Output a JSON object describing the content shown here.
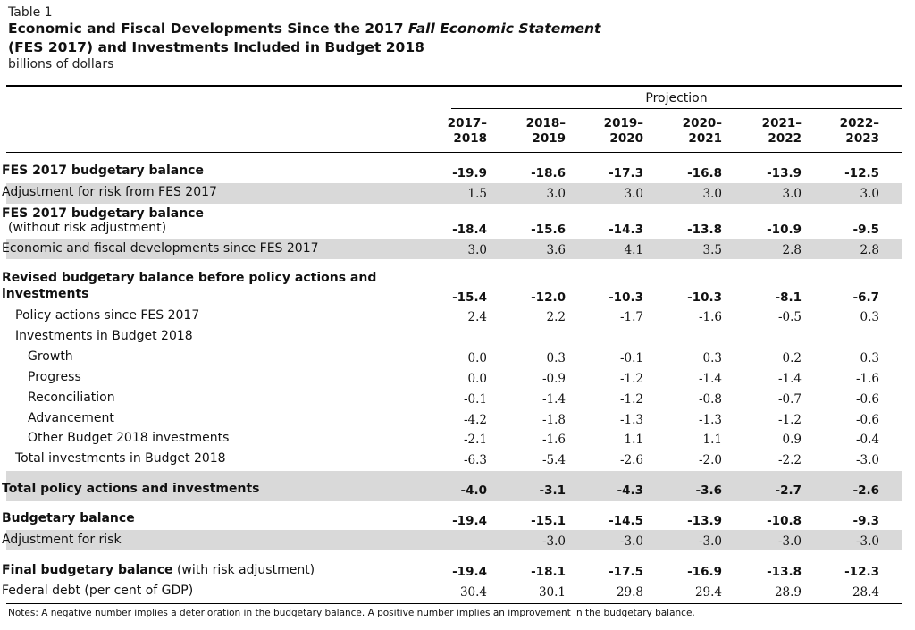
{
  "table_label": "Table 1",
  "title_part1": "Economic and Fiscal Developments Since the 2017 ",
  "title_italic": "Fall Economic Statement",
  "title_line2": "(FES 2017) and Investments Included in Budget 2018",
  "units": "billions of dollars",
  "projection_label": "Projection",
  "years": [
    {
      "top": "2017–",
      "bottom": "2018"
    },
    {
      "top": "2018–",
      "bottom": "2019"
    },
    {
      "top": "2019–",
      "bottom": "2020"
    },
    {
      "top": "2020–",
      "bottom": "2021"
    },
    {
      "top": "2021–",
      "bottom": "2022"
    },
    {
      "top": "2022–",
      "bottom": "2023"
    }
  ],
  "rows": [
    {
      "label": "FES 2017 budgetary balance",
      "values": [
        "-19.9",
        "-18.6",
        "-17.3",
        "-16.8",
        "-13.9",
        "-12.5"
      ]
    },
    {
      "label": "Adjustment for risk from FES 2017",
      "values": [
        "1.5",
        "3.0",
        "3.0",
        "3.0",
        "3.0",
        "3.0"
      ]
    },
    {
      "label": "FES 2017 budgetary balance",
      "label2": "(without risk adjustment)",
      "values": [
        "-18.4",
        "-15.6",
        "-14.3",
        "-13.8",
        "-10.9",
        "-9.5"
      ]
    },
    {
      "label": "Economic and fiscal developments since FES 2017",
      "values": [
        "3.0",
        "3.6",
        "4.1",
        "3.5",
        "2.8",
        "2.8"
      ]
    },
    {
      "label": "Revised budgetary balance before policy actions and",
      "label2": "investments",
      "values": [
        "-15.4",
        "-12.0",
        "-10.3",
        "-10.3",
        "-8.1",
        "-6.7"
      ]
    },
    {
      "label": "Policy actions since FES 2017",
      "values": [
        "2.4",
        "2.2",
        "-1.7",
        "-1.6",
        "-0.5",
        "0.3"
      ]
    },
    {
      "label": "Investments in Budget 2018"
    },
    {
      "label": "Growth",
      "values": [
        "0.0",
        "0.3",
        "-0.1",
        "0.3",
        "0.2",
        "0.3"
      ]
    },
    {
      "label": "Progress",
      "values": [
        "0.0",
        "-0.9",
        "-1.2",
        "-1.4",
        "-1.4",
        "-1.6"
      ]
    },
    {
      "label": "Reconciliation",
      "values": [
        "-0.1",
        "-1.4",
        "-1.2",
        "-0.8",
        "-0.7",
        "-0.6"
      ]
    },
    {
      "label": "Advancement",
      "values": [
        "-4.2",
        "-1.8",
        "-1.3",
        "-1.3",
        "-1.2",
        "-0.6"
      ]
    },
    {
      "label": "Other Budget 2018 investments",
      "values": [
        "-2.1",
        "-1.6",
        "1.1",
        "1.1",
        "0.9",
        "-0.4"
      ]
    },
    {
      "label": "Total investments in Budget 2018",
      "values": [
        "-6.3",
        "-5.4",
        "-2.6",
        "-2.0",
        "-2.2",
        "-3.0"
      ]
    },
    {
      "label": "Total policy actions and investments",
      "values": [
        "-4.0",
        "-3.1",
        "-4.3",
        "-3.6",
        "-2.7",
        "-2.6"
      ]
    },
    {
      "label": "Budgetary balance",
      "values": [
        "-19.4",
        "-15.1",
        "-14.5",
        "-13.9",
        "-10.8",
        "-9.3"
      ]
    },
    {
      "label": "Adjustment for risk",
      "values": [
        "",
        "-3.0",
        "-3.0",
        "-3.0",
        "-3.0",
        "-3.0"
      ]
    },
    {
      "label": "Final budgetary balance",
      "label_suffix": " (with risk adjustment)",
      "values": [
        "-19.4",
        "-18.1",
        "-17.5",
        "-16.9",
        "-13.8",
        "-12.3"
      ]
    },
    {
      "label": "Federal debt (per cent of GDP)",
      "values": [
        "30.4",
        "30.1",
        "29.8",
        "29.4",
        "28.9",
        "28.4"
      ]
    }
  ],
  "note": "Notes: A negative number implies a deterioration in the budgetary balance. A positive number implies an improvement in the budgetary balance."
}
